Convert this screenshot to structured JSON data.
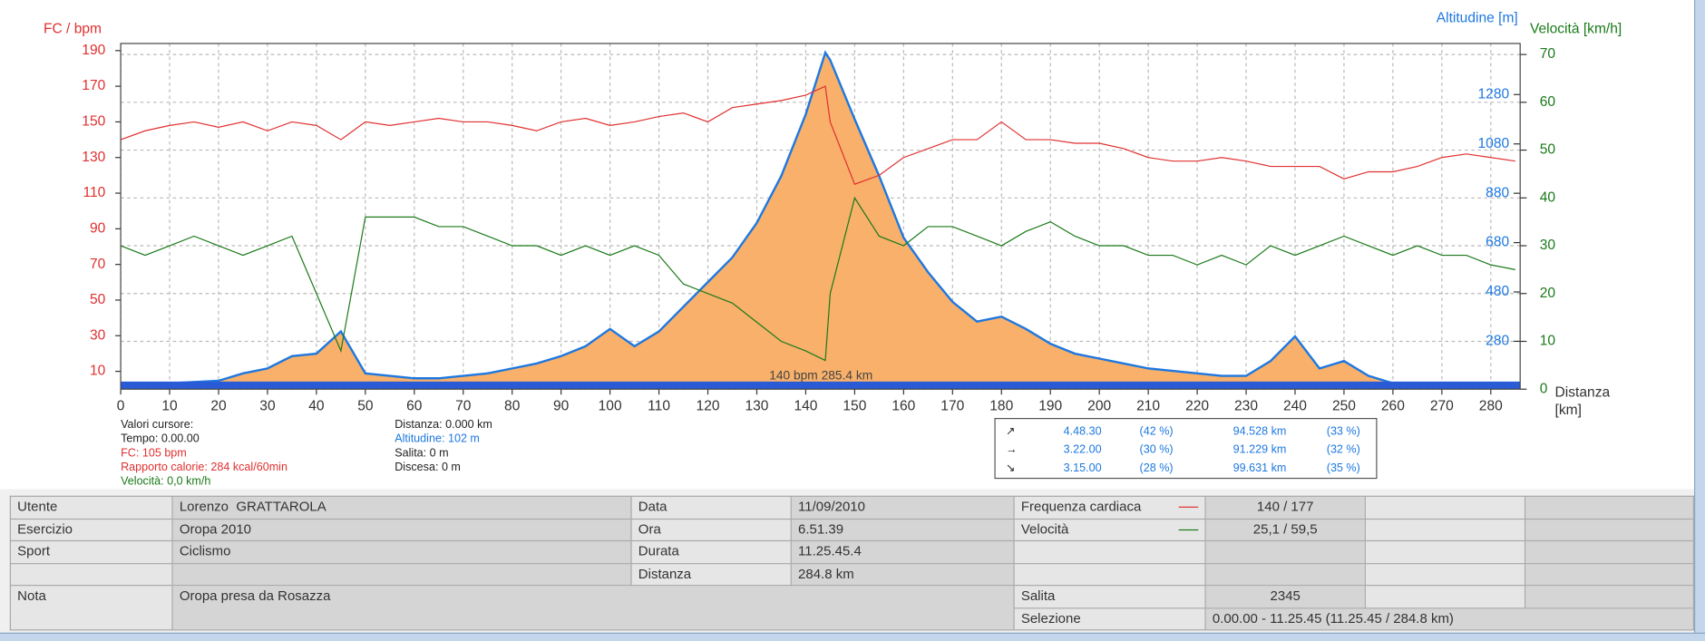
{
  "chart_data": {
    "type": "line",
    "y_label": "FC / bpm",
    "y2_label": "Altitudine [m]",
    "y3_label": "Velocità [km/h]",
    "x_label": "Distanza [km]",
    "annotation": "140 bpm 285.4 km",
    "x": [
      0,
      5,
      10,
      15,
      20,
      25,
      30,
      35,
      40,
      45,
      50,
      55,
      60,
      65,
      70,
      75,
      80,
      85,
      90,
      95,
      100,
      105,
      110,
      115,
      120,
      125,
      130,
      135,
      140,
      144,
      145,
      150,
      155,
      160,
      165,
      170,
      175,
      180,
      185,
      190,
      195,
      200,
      205,
      210,
      215,
      220,
      225,
      230,
      235,
      240,
      245,
      250,
      255,
      260,
      265,
      270,
      275,
      280,
      285
    ],
    "xlim": [
      0,
      286
    ],
    "xticks": [
      0,
      10,
      20,
      30,
      40,
      50,
      60,
      70,
      80,
      90,
      100,
      110,
      120,
      130,
      140,
      150,
      160,
      170,
      180,
      190,
      200,
      210,
      220,
      230,
      240,
      250,
      260,
      270,
      280
    ],
    "ylim": [
      0,
      194
    ],
    "yticks": [
      10,
      30,
      50,
      70,
      90,
      110,
      130,
      150,
      170,
      190
    ],
    "y2lim": [
      86,
      1487
    ],
    "y2ticks": [
      280,
      480,
      680,
      880,
      1080,
      1280
    ],
    "y3lim": [
      0,
      72.3
    ],
    "y3ticks": [
      0,
      10,
      20,
      30,
      40,
      50,
      60,
      70
    ],
    "grid": true,
    "series": [
      {
        "name": "Altitudine",
        "axis": "y2",
        "color": "#1e78e0",
        "fill": "#f8b06a",
        "values": [
          110,
          110,
          110,
          115,
          120,
          150,
          170,
          220,
          230,
          320,
          150,
          140,
          130,
          130,
          140,
          150,
          170,
          190,
          220,
          260,
          330,
          260,
          320,
          420,
          520,
          620,
          760,
          950,
          1200,
          1450,
          1420,
          1180,
          950,
          700,
          560,
          440,
          360,
          380,
          330,
          270,
          230,
          210,
          190,
          170,
          160,
          150,
          140,
          140,
          200,
          300,
          170,
          200,
          140,
          110,
          100,
          105,
          100,
          100,
          100
        ]
      },
      {
        "name": "Velocità",
        "axis": "y3",
        "color": "#1a7a1a",
        "values": [
          30,
          28,
          30,
          32,
          30,
          28,
          30,
          32,
          20,
          8,
          36,
          36,
          36,
          34,
          34,
          32,
          30,
          30,
          28,
          30,
          28,
          30,
          28,
          22,
          20,
          18,
          14,
          10,
          8,
          6,
          20,
          40,
          32,
          30,
          34,
          34,
          32,
          30,
          33,
          35,
          32,
          30,
          30,
          28,
          28,
          26,
          28,
          26,
          30,
          28,
          30,
          32,
          30,
          28,
          30,
          28,
          28,
          26,
          25
        ]
      },
      {
        "name": "FC",
        "color": "#e03030",
        "values": [
          140,
          145,
          148,
          150,
          147,
          150,
          145,
          150,
          148,
          140,
          150,
          148,
          150,
          152,
          150,
          150,
          148,
          145,
          150,
          152,
          148,
          150,
          153,
          155,
          150,
          158,
          160,
          162,
          165,
          170,
          150,
          115,
          120,
          130,
          135,
          140,
          140,
          150,
          140,
          140,
          138,
          138,
          135,
          130,
          128,
          128,
          130,
          128,
          125,
          125,
          125,
          118,
          122,
          122,
          125,
          130,
          132,
          130,
          128
        ]
      }
    ]
  },
  "cursor_panel": {
    "left": [
      "Valori cursore:",
      "Tempo: 0.00.00",
      "FC: 105 bpm",
      "Rapporto calorie: 284 kcal/60min",
      "Velocità: 0,0 km/h"
    ],
    "right": [
      "Distanza: 0.000 km",
      "Altitudine: 102 m",
      "Salita: 0 m",
      "Discesa: 0 m"
    ]
  },
  "stats": {
    "rows": [
      [
        "↗",
        "4.48.30",
        "(42 %)",
        "94.528 km",
        "(33 %)"
      ],
      [
        "→",
        "3.22.00",
        "(30 %)",
        "91.229 km",
        "(32 %)"
      ],
      [
        "↘",
        "3.15.00",
        "(28 %)",
        "99.631 km",
        "(35 %)"
      ]
    ]
  },
  "table": {
    "rows": [
      [
        "Utente",
        "Lorenzo  GRATTAROLA",
        "Data",
        "11/09/2010",
        "Frequenza cardiaca",
        "140 / 177"
      ],
      [
        "Esercizio",
        "Oropa 2010",
        "Ora",
        "6.51.39",
        "Velocità",
        "25,1 / 59,5"
      ],
      [
        "Sport",
        "Ciclismo",
        "Durata",
        "11.25.45.4"
      ],
      [
        "Distanza",
        "284.8 km"
      ],
      [
        "Nota",
        "Oropa presa da Rosazza",
        "Salita",
        "2345"
      ],
      [
        "Selezione",
        "0.00.00 - 11.25.45 (11.25.45 / 284.8 km)"
      ]
    ]
  }
}
